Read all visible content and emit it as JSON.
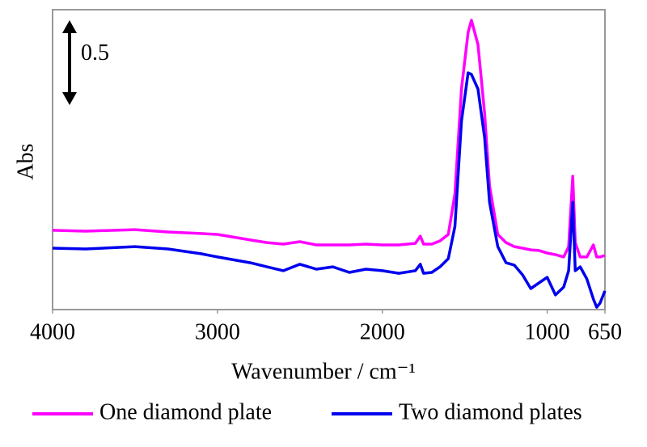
{
  "chart_data": {
    "type": "line",
    "x_label": "Wavenumber / cm⁻¹",
    "y_label": "Abs",
    "scale_bar": 0.5,
    "xlim": [
      4000,
      650
    ],
    "xticks": [
      4000,
      3000,
      2000,
      1000,
      650
    ],
    "ylim": [
      0,
      1.767
    ],
    "x": [
      4000,
      3800,
      3500,
      3300,
      3100,
      3000,
      2800,
      2700,
      2600,
      2500,
      2400,
      2300,
      2200,
      2100,
      2000,
      1900,
      1800,
      1770,
      1750,
      1700,
      1650,
      1600,
      1560,
      1520,
      1480,
      1460,
      1420,
      1380,
      1350,
      1300,
      1250,
      1200,
      1150,
      1100,
      1050,
      1000,
      950,
      900,
      870,
      845,
      830,
      800,
      760,
      720,
      700,
      680,
      650
    ],
    "series": [
      {
        "name": "One diamond plate",
        "color": "#ff00ff",
        "values": [
          0.467,
          0.462,
          0.471,
          0.457,
          0.448,
          0.443,
          0.41,
          0.395,
          0.386,
          0.4,
          0.381,
          0.381,
          0.381,
          0.386,
          0.381,
          0.381,
          0.39,
          0.433,
          0.386,
          0.386,
          0.405,
          0.443,
          0.681,
          1.3,
          1.633,
          1.705,
          1.562,
          1.157,
          0.729,
          0.443,
          0.395,
          0.371,
          0.362,
          0.352,
          0.348,
          0.333,
          0.324,
          0.31,
          0.371,
          0.786,
          0.395,
          0.31,
          0.31,
          0.381,
          0.31,
          0.31,
          0.319
        ]
      },
      {
        "name": "Two diamond plates",
        "color": "#0000ee",
        "values": [
          0.362,
          0.357,
          0.371,
          0.357,
          0.329,
          0.31,
          0.276,
          0.252,
          0.229,
          0.267,
          0.238,
          0.252,
          0.219,
          0.238,
          0.229,
          0.214,
          0.229,
          0.267,
          0.214,
          0.219,
          0.252,
          0.3,
          0.49,
          1.11,
          1.395,
          1.386,
          1.3,
          1.014,
          0.633,
          0.371,
          0.276,
          0.262,
          0.205,
          0.124,
          0.157,
          0.19,
          0.086,
          0.133,
          0.229,
          0.633,
          0.229,
          0.252,
          0.181,
          0.062,
          0.014,
          0.038,
          0.11
        ]
      }
    ]
  }
}
